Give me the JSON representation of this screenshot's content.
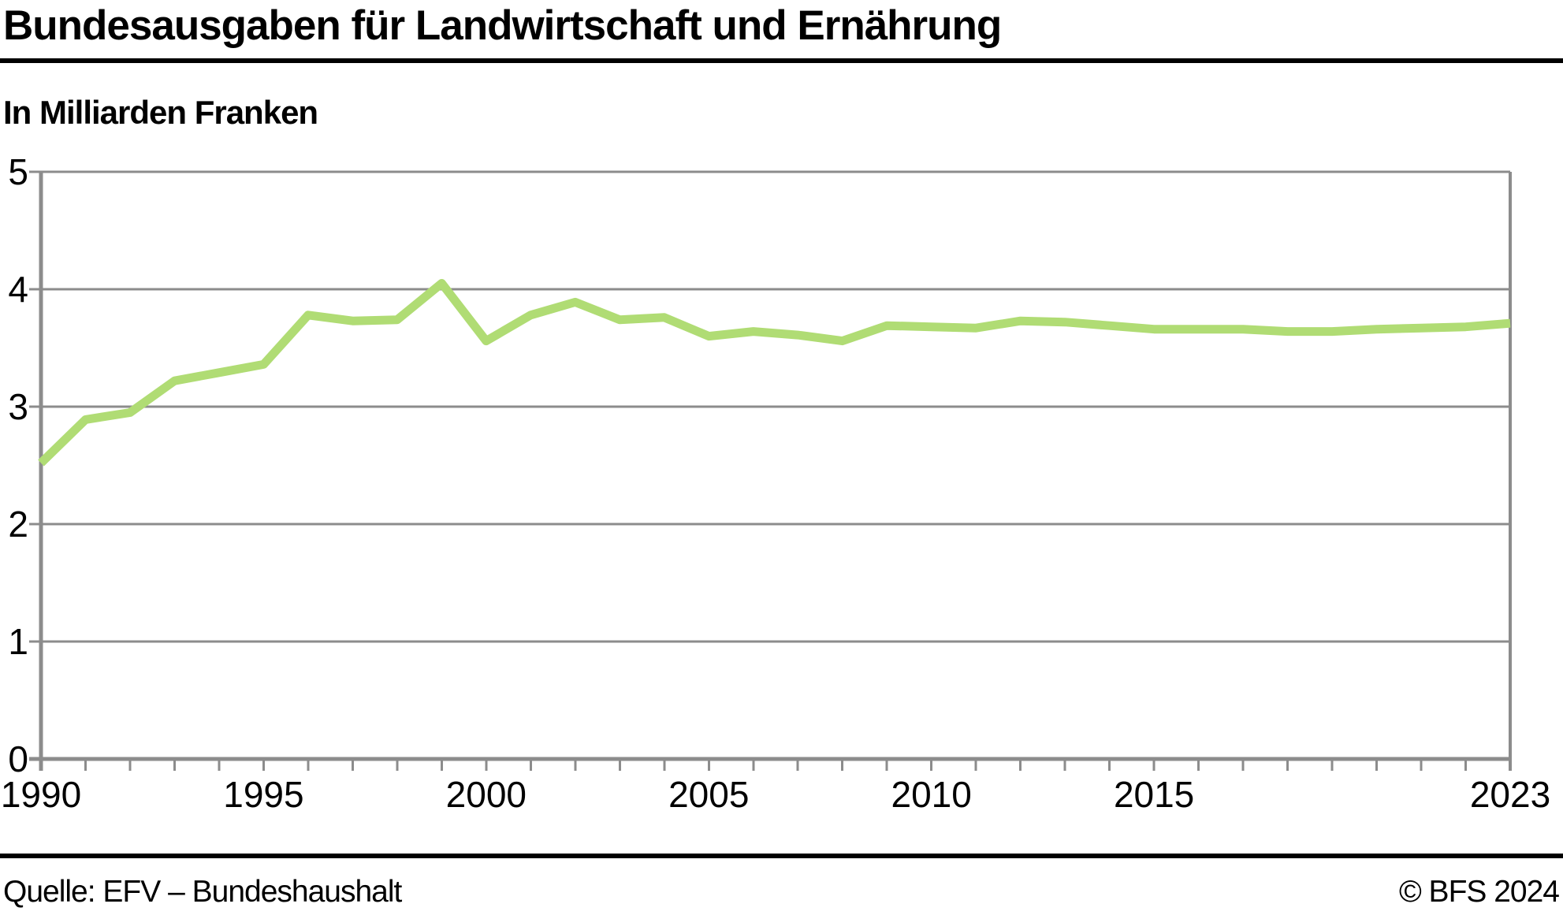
{
  "header": {
    "title": "Bundesausgaben für Landwirtschaft und Ernährung",
    "subtitle": "In Milliarden Franken"
  },
  "footer": {
    "source": "Quelle: EFV – Bundeshaushalt",
    "copyright": "© BFS 2024"
  },
  "colors": {
    "line": "#b0dc74",
    "grid": "#8c8c8c",
    "axis": "#8c8c8c",
    "text": "#000000",
    "rule": "#000000"
  },
  "chart_data": {
    "type": "line",
    "title": "Bundesausgaben für Landwirtschaft und Ernährung",
    "ylabel": "In Milliarden Franken",
    "xlabel": "",
    "grid": "horizontal",
    "legend_position": "none",
    "xlim": [
      1990,
      2023
    ],
    "ylim": [
      0,
      5
    ],
    "xticks": [
      1990,
      1995,
      2000,
      2005,
      2010,
      2015,
      2023
    ],
    "minor_xticks_every_year": true,
    "yticks": [
      0,
      1,
      2,
      3,
      4,
      5
    ],
    "x": [
      1990,
      1991,
      1992,
      1993,
      1994,
      1995,
      1996,
      1997,
      1998,
      1999,
      2000,
      2001,
      2002,
      2003,
      2004,
      2005,
      2006,
      2007,
      2008,
      2009,
      2010,
      2011,
      2012,
      2013,
      2014,
      2015,
      2016,
      2017,
      2018,
      2019,
      2020,
      2021,
      2022,
      2023
    ],
    "series": [
      {
        "name": "Bundesausgaben für Landwirtschaft und Ernährung",
        "values": [
          2.52,
          2.89,
          2.95,
          3.22,
          3.29,
          3.36,
          3.78,
          3.73,
          3.74,
          4.05,
          3.56,
          3.78,
          3.89,
          3.74,
          3.76,
          3.6,
          3.64,
          3.61,
          3.56,
          3.69,
          3.68,
          3.67,
          3.73,
          3.72,
          3.69,
          3.66,
          3.66,
          3.66,
          3.64,
          3.64,
          3.66,
          3.67,
          3.68,
          3.71
        ]
      }
    ]
  }
}
